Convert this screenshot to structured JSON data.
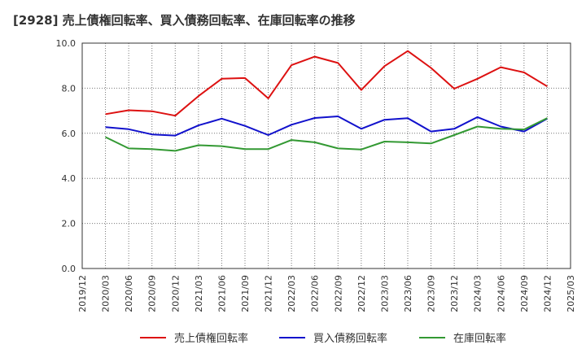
{
  "chart_data": {
    "type": "line",
    "title": "[2928]  売上債権回転率、買入債務回転率、在庫回転率の推移",
    "xlabel": "",
    "ylabel": "",
    "ylim": [
      0,
      10
    ],
    "yticks": [
      "0.0",
      "2.0",
      "4.0",
      "6.0",
      "8.0",
      "10.0"
    ],
    "ytick_values": [
      0,
      2,
      4,
      6,
      8,
      10
    ],
    "grid": true,
    "legend_position": "bottom",
    "categories": [
      "2019/12",
      "2020/03",
      "2020/06",
      "2020/09",
      "2020/12",
      "2021/03",
      "2021/06",
      "2021/09",
      "2021/12",
      "2022/03",
      "2022/06",
      "2022/09",
      "2022/12",
      "2023/03",
      "2023/06",
      "2023/09",
      "2023/12",
      "2024/03",
      "2024/06",
      "2024/09",
      "2024/12",
      "2025/03"
    ],
    "series": [
      {
        "name": "売上債権回転率",
        "color": "#dd1111",
        "values": [
          null,
          6.85,
          7.02,
          6.98,
          6.78,
          7.65,
          8.42,
          8.45,
          7.55,
          9.02,
          9.4,
          9.12,
          7.92,
          8.98,
          9.65,
          8.9,
          7.98,
          8.42,
          8.93,
          8.7,
          8.08,
          null
        ]
      },
      {
        "name": "買入債務回転率",
        "color": "#1111cc",
        "values": [
          null,
          6.27,
          6.18,
          5.95,
          5.9,
          6.35,
          6.65,
          6.33,
          5.92,
          6.38,
          6.68,
          6.75,
          6.2,
          6.6,
          6.67,
          6.08,
          6.2,
          6.72,
          6.3,
          6.08,
          6.65,
          null
        ]
      },
      {
        "name": "在庫回転率",
        "color": "#339933",
        "values": [
          null,
          5.83,
          5.33,
          5.3,
          5.22,
          5.47,
          5.43,
          5.3,
          5.3,
          5.7,
          5.6,
          5.33,
          5.28,
          5.63,
          5.6,
          5.55,
          5.92,
          6.3,
          6.2,
          6.17,
          6.67,
          null
        ]
      }
    ]
  }
}
